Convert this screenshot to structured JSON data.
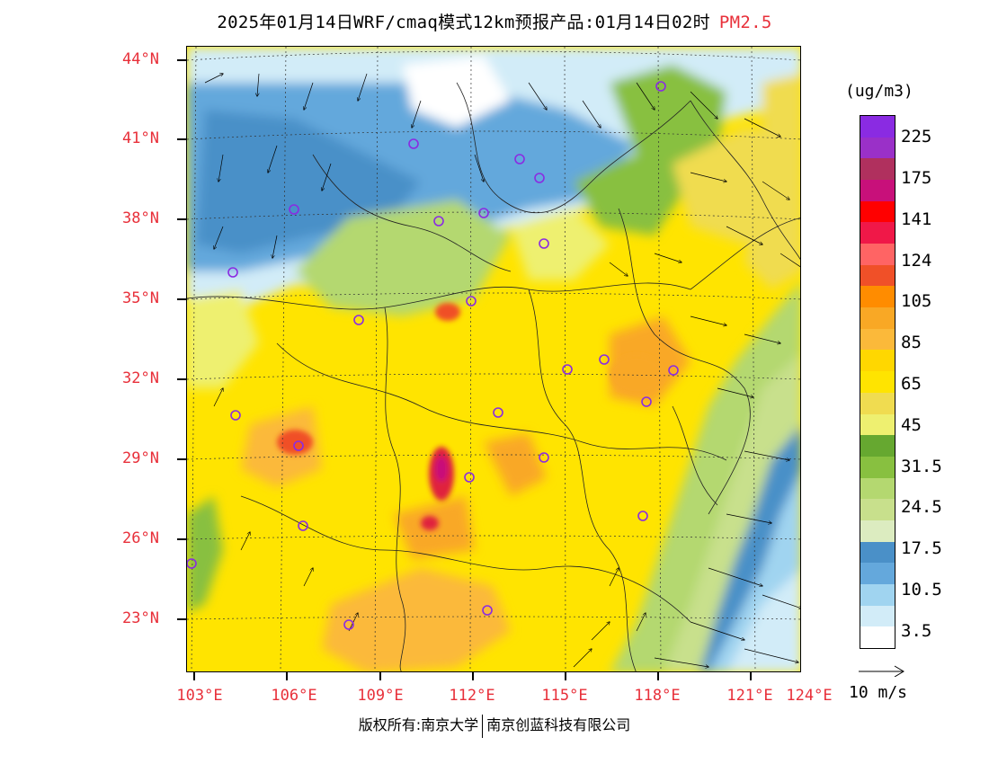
{
  "title": {
    "main": "2025年01月14日WRF/cmaq模式12km预报产品:01月14日02时",
    "product": "PM2.5"
  },
  "axes": {
    "lat_labels": [
      "44°N",
      "41°N",
      "38°N",
      "35°N",
      "32°N",
      "29°N",
      "26°N",
      "23°N"
    ],
    "lon_labels": [
      "103°E",
      "106°E",
      "109°E",
      "112°E",
      "115°E",
      "118°E",
      "121°E",
      "124°E"
    ]
  },
  "legend": {
    "unit": "(ug/m3)",
    "labels": [
      "225",
      "175",
      "141",
      "124",
      "105",
      "85",
      "65",
      "45",
      "31.5",
      "24.5",
      "17.5",
      "10.5",
      "3.5"
    ],
    "colors": [
      "#8a2be2",
      "#9a30c8",
      "#b0305e",
      "#c8107a",
      "#ff0000",
      "#f01848",
      "#ff6464",
      "#f05028",
      "#ff8c00",
      "#f9a825",
      "#fbb93a",
      "#ffd700",
      "#ffe400",
      "#f0dc50",
      "#eef070",
      "#66a830",
      "#88c040",
      "#b4d870",
      "#c8e08c",
      "#dcecc0",
      "#4a90c8",
      "#64a8dc",
      "#a0d4f0",
      "#d2ecf8",
      "#ffffff"
    ]
  },
  "wind_reference": {
    "label": "10 m/s"
  },
  "footer": {
    "left": "版权所有:南京大学",
    "right": "南京创蓝科技有限公司"
  },
  "map": {
    "colors": {
      "background": "#ffe400",
      "high_orange": "#f9a825",
      "hotspot_red": "#e0203c",
      "hotspot_magenta": "#c8107a",
      "clean_blue": "#4a90c8",
      "clean_light_blue": "#a0d4f0",
      "sea_pale": "#d2ecf8",
      "green": "#88c040",
      "light_green": "#b4d870",
      "city_marker": "#8a2be2"
    }
  }
}
